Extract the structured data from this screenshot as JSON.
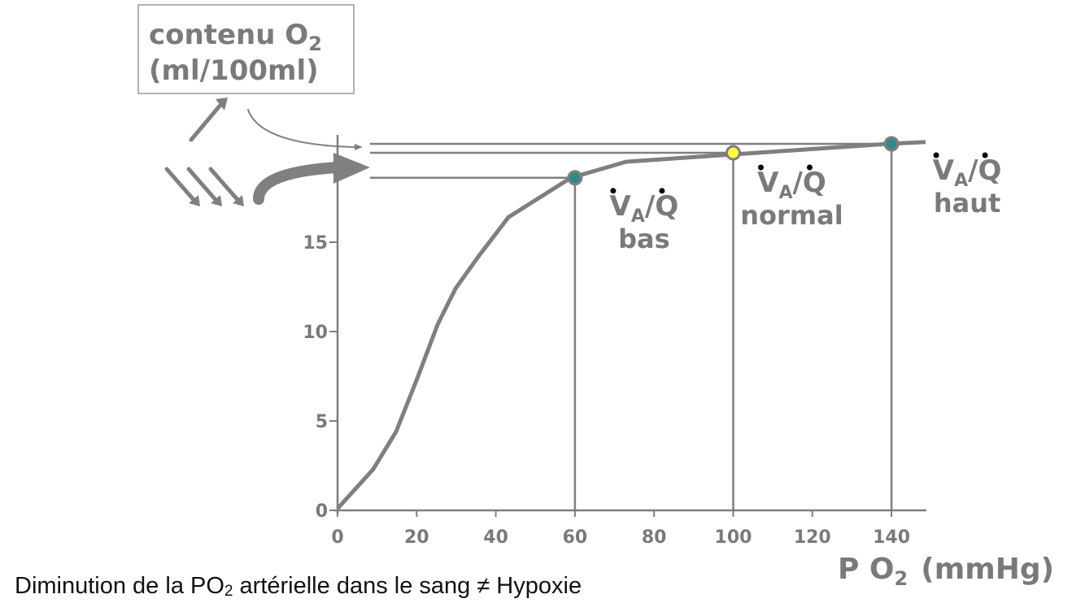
{
  "chart_data": {
    "type": "line",
    "y_label": {
      "main": "contenu O",
      "sub": "2",
      "line2": "(ml/100ml)"
    },
    "x_label": {
      "main": "P O",
      "sub": "2",
      "rest": "(mmHg)"
    },
    "caption": {
      "main": "Diminution de la PO",
      "sub": "2",
      "rest": " artérielle dans le sang ≠ Hypoxie"
    },
    "ratio_symbol": {
      "main": "V",
      "sub": "A",
      "rest": "/Q"
    },
    "xlim": [
      0,
      148
    ],
    "ylim": [
      0,
      21
    ],
    "xticks": [
      0,
      20,
      40,
      60,
      80,
      100,
      120,
      140
    ],
    "yticks": [
      0,
      5,
      10,
      15
    ],
    "color": "#7f7f7f",
    "curve": {
      "x": [
        0,
        9,
        14.8,
        20,
        25.3,
        29.8,
        35.6,
        43.2,
        59,
        73,
        99.3,
        139.2,
        148.6
      ],
      "values": [
        0.1,
        2.3,
        4.4,
        7.3,
        10.4,
        12.4,
        14.2,
        16.4,
        18.6,
        19.5,
        19.9,
        20.5,
        20.6
      ]
    },
    "points": {
      "x": [
        60,
        100,
        140
      ],
      "values": [
        18.6,
        20,
        20.5
      ],
      "labels": [
        "bas",
        "normal",
        "haut"
      ],
      "colors": [
        "#2f8a8c",
        "#ffff3c",
        "#2f8a8c"
      ]
    }
  }
}
